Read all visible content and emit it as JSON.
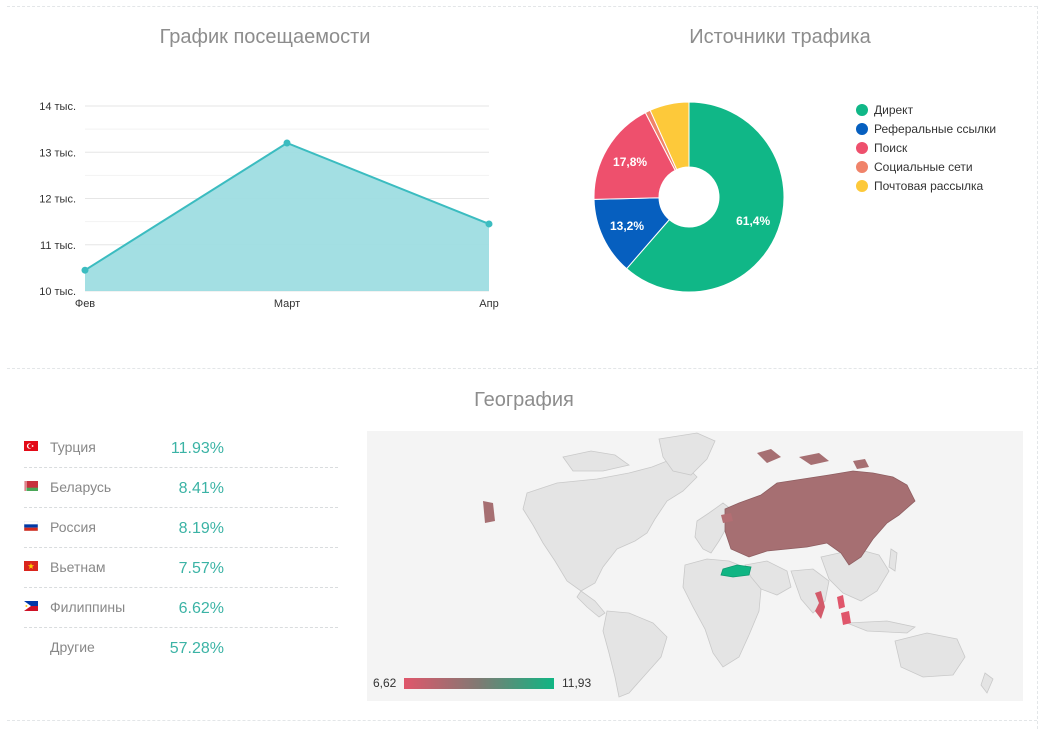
{
  "titles": {
    "visits": "График посещаемости",
    "traffic": "Источники трафика",
    "geography": "География"
  },
  "chart_data": [
    {
      "type": "area",
      "title": "График посещаемости",
      "categories": [
        "Фев",
        "Март",
        "Апр"
      ],
      "values": [
        10.45,
        13.2,
        11.45
      ],
      "ylim": [
        10,
        14
      ],
      "yticks": [
        10,
        11,
        12,
        13,
        14
      ],
      "ytick_labels": [
        "10 тыс.",
        "11 тыс.",
        "12 тыс.",
        "13 тыс.",
        "14 тыс."
      ],
      "grid": true,
      "color": "#3bbcc0",
      "fill": "#9edde1"
    },
    {
      "type": "pie",
      "title": "Источники трафика",
      "donut": true,
      "legend_position": "right",
      "slices": [
        {
          "label": "Директ",
          "value": 61.4,
          "display": "61,4%",
          "color": "#10b787"
        },
        {
          "label": "Реферальные ссылки",
          "value": 13.2,
          "display": "13,2%",
          "color": "#065fbf"
        },
        {
          "label": "Поиск",
          "value": 17.8,
          "display": "17,8%",
          "color": "#ee506d"
        },
        {
          "label": "Социальные сети",
          "value": 0.9,
          "display": "",
          "color": "#f0836a"
        },
        {
          "label": "Почтовая рассылка",
          "value": 6.7,
          "display": "",
          "color": "#fdc93a"
        }
      ]
    }
  ],
  "geography": {
    "rows": [
      {
        "country": "Турция",
        "percent": "11.93%",
        "flag": "turkey-flag-icon"
      },
      {
        "country": "Беларусь",
        "percent": "8.41%",
        "flag": "belarus-flag-icon"
      },
      {
        "country": "Россия",
        "percent": "8.19%",
        "flag": "russia-flag-icon"
      },
      {
        "country": "Вьетнам",
        "percent": "7.57%",
        "flag": "vietnam-flag-icon"
      },
      {
        "country": "Филиппины",
        "percent": "6.62%",
        "flag": "philippines-flag-icon"
      },
      {
        "country": "Другие",
        "percent": "57.28%",
        "flag": ""
      }
    ],
    "scale_min": "6,62",
    "scale_max": "11,93",
    "colors": {
      "low": "#e0566b",
      "high": "#10b583",
      "russia": "#a66f72",
      "land": "#e4e4e4",
      "ocean": "#f4f4f4"
    }
  }
}
